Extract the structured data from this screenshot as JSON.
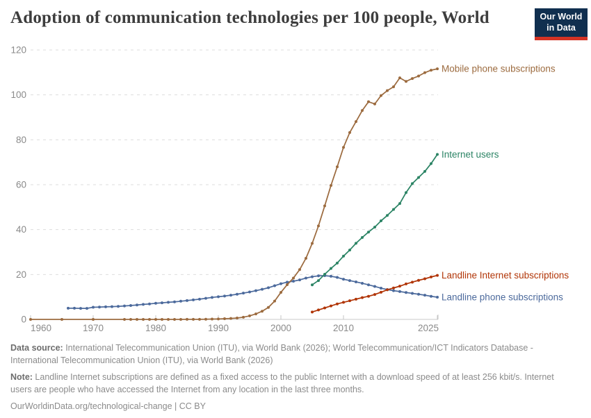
{
  "header": {
    "title": "Adoption of communication technologies per 100 people, World",
    "logo": {
      "line1": "Our World",
      "line2": "in Data",
      "bg_color": "#102F4F",
      "bar_color": "#D43324"
    }
  },
  "footer": {
    "data_source_label": "Data source:",
    "data_source_text": " International Telecommunication Union (ITU), via World Bank (2026); World Telecommunication/ICT Indicators Database - International Telecommunication Union (ITU), via World Bank (2026)",
    "note_label": "Note:",
    "note_text": " Landline Internet subscriptions are defined as a fixed access to the public Internet with a download speed of at least 256 kbit/s. Internet users are people who have accessed the Internet from any location in the last three months.",
    "attribution": "OurWorldinData.org/technological-change | CC BY"
  },
  "chart_data": {
    "type": "line",
    "title": "Adoption of communication technologies per 100 people, World",
    "xlabel": "",
    "ylabel": "",
    "xlim": [
      1960,
      2026
    ],
    "ylim": [
      0,
      120
    ],
    "yticks": [
      0,
      20,
      40,
      60,
      80,
      100,
      120
    ],
    "xticks": [
      1960,
      1970,
      1980,
      1990,
      2000,
      2010,
      2025
    ],
    "grid": "horizontal-dashed",
    "legend_position": "end-of-line-labels",
    "axis_color": "#c8c8c8",
    "grid_color": "#dddddd",
    "tick_label_color": "#8a8a8a",
    "series": [
      {
        "name": "Mobile phone subscriptions",
        "color": "#9C6B3F",
        "points": [
          [
            1960,
            0
          ],
          [
            1965,
            0
          ],
          [
            1970,
            0
          ],
          [
            1975,
            0
          ],
          [
            1976,
            0
          ],
          [
            1977,
            0
          ],
          [
            1978,
            0
          ],
          [
            1979,
            0
          ],
          [
            1980,
            0
          ],
          [
            1981,
            0
          ],
          [
            1982,
            0
          ],
          [
            1983,
            0
          ],
          [
            1984,
            0.01
          ],
          [
            1985,
            0.02
          ],
          [
            1986,
            0.03
          ],
          [
            1987,
            0.05
          ],
          [
            1988,
            0.09
          ],
          [
            1989,
            0.14
          ],
          [
            1990,
            0.21
          ],
          [
            1991,
            0.3
          ],
          [
            1992,
            0.42
          ],
          [
            1993,
            0.61
          ],
          [
            1994,
            0.98
          ],
          [
            1995,
            1.57
          ],
          [
            1996,
            2.45
          ],
          [
            1997,
            3.65
          ],
          [
            1998,
            5.32
          ],
          [
            1999,
            8.15
          ],
          [
            2000,
            12.04
          ],
          [
            2001,
            15.46
          ],
          [
            2002,
            18.42
          ],
          [
            2003,
            22.18
          ],
          [
            2004,
            27.22
          ],
          [
            2005,
            33.86
          ],
          [
            2006,
            41.64
          ],
          [
            2007,
            50.55
          ],
          [
            2008,
            59.66
          ],
          [
            2009,
            67.96
          ],
          [
            2010,
            76.61
          ],
          [
            2011,
            83.22
          ],
          [
            2012,
            88.09
          ],
          [
            2013,
            93.04
          ],
          [
            2014,
            96.94
          ],
          [
            2015,
            95.96
          ],
          [
            2016,
            99.7
          ],
          [
            2017,
            101.9
          ],
          [
            2018,
            103.6
          ],
          [
            2019,
            107.6
          ],
          [
            2020,
            106.0
          ],
          [
            2021,
            107.3
          ],
          [
            2022,
            108.4
          ],
          [
            2023,
            109.9
          ],
          [
            2024,
            111.0
          ],
          [
            2025,
            111.6
          ]
        ]
      },
      {
        "name": "Internet users",
        "color": "#2C8465",
        "points": [
          [
            2005,
            15.4
          ],
          [
            2006,
            17.3
          ],
          [
            2007,
            20.1
          ],
          [
            2008,
            22.7
          ],
          [
            2009,
            25.1
          ],
          [
            2010,
            28.2
          ],
          [
            2011,
            30.9
          ],
          [
            2012,
            33.9
          ],
          [
            2013,
            36.5
          ],
          [
            2014,
            38.9
          ],
          [
            2015,
            41.1
          ],
          [
            2016,
            43.9
          ],
          [
            2017,
            46.3
          ],
          [
            2018,
            49.0
          ],
          [
            2019,
            51.6
          ],
          [
            2020,
            56.5
          ],
          [
            2021,
            60.5
          ],
          [
            2022,
            63.2
          ],
          [
            2023,
            65.9
          ],
          [
            2024,
            69.4
          ],
          [
            2025,
            73.5
          ]
        ]
      },
      {
        "name": "Landline Internet subscriptions",
        "color": "#B13507",
        "points": [
          [
            2005,
            3.3
          ],
          [
            2006,
            4.2
          ],
          [
            2007,
            5.1
          ],
          [
            2008,
            6.0
          ],
          [
            2009,
            6.9
          ],
          [
            2010,
            7.6
          ],
          [
            2011,
            8.3
          ],
          [
            2012,
            9.0
          ],
          [
            2013,
            9.7
          ],
          [
            2014,
            10.3
          ],
          [
            2015,
            11.1
          ],
          [
            2016,
            12.1
          ],
          [
            2017,
            13.2
          ],
          [
            2018,
            14.0
          ],
          [
            2019,
            14.8
          ],
          [
            2020,
            15.8
          ],
          [
            2021,
            16.6
          ],
          [
            2022,
            17.4
          ],
          [
            2023,
            18.1
          ],
          [
            2024,
            18.9
          ],
          [
            2025,
            19.6
          ]
        ]
      },
      {
        "name": "Landline phone subscriptions",
        "color": "#4C6A9C",
        "points": [
          [
            1966,
            5.0
          ],
          [
            1967,
            5.0
          ],
          [
            1968,
            4.9
          ],
          [
            1969,
            4.9
          ],
          [
            1970,
            5.4
          ],
          [
            1971,
            5.5
          ],
          [
            1972,
            5.6
          ],
          [
            1973,
            5.7
          ],
          [
            1974,
            5.8
          ],
          [
            1975,
            6.0
          ],
          [
            1976,
            6.2
          ],
          [
            1977,
            6.4
          ],
          [
            1978,
            6.7
          ],
          [
            1979,
            6.9
          ],
          [
            1980,
            7.2
          ],
          [
            1981,
            7.4
          ],
          [
            1982,
            7.6
          ],
          [
            1983,
            7.8
          ],
          [
            1984,
            8.1
          ],
          [
            1985,
            8.4
          ],
          [
            1986,
            8.7
          ],
          [
            1987,
            9.0
          ],
          [
            1988,
            9.4
          ],
          [
            1989,
            9.8
          ],
          [
            1990,
            10.1
          ],
          [
            1991,
            10.4
          ],
          [
            1992,
            10.8
          ],
          [
            1993,
            11.2
          ],
          [
            1994,
            11.7
          ],
          [
            1995,
            12.2
          ],
          [
            1996,
            12.8
          ],
          [
            1997,
            13.4
          ],
          [
            1998,
            14.1
          ],
          [
            1999,
            15.0
          ],
          [
            2000,
            15.9
          ],
          [
            2001,
            16.6
          ],
          [
            2002,
            17.0
          ],
          [
            2003,
            17.6
          ],
          [
            2004,
            18.4
          ],
          [
            2005,
            19.0
          ],
          [
            2006,
            19.4
          ],
          [
            2007,
            19.5
          ],
          [
            2008,
            19.2
          ],
          [
            2009,
            18.7
          ],
          [
            2010,
            17.9
          ],
          [
            2011,
            17.3
          ],
          [
            2012,
            16.7
          ],
          [
            2013,
            16.1
          ],
          [
            2014,
            15.4
          ],
          [
            2015,
            14.7
          ],
          [
            2016,
            13.9
          ],
          [
            2017,
            13.3
          ],
          [
            2018,
            12.8
          ],
          [
            2019,
            12.4
          ],
          [
            2020,
            12.0
          ],
          [
            2021,
            11.6
          ],
          [
            2022,
            11.2
          ],
          [
            2023,
            10.8
          ],
          [
            2024,
            10.3
          ],
          [
            2025,
            9.9
          ]
        ]
      }
    ]
  }
}
